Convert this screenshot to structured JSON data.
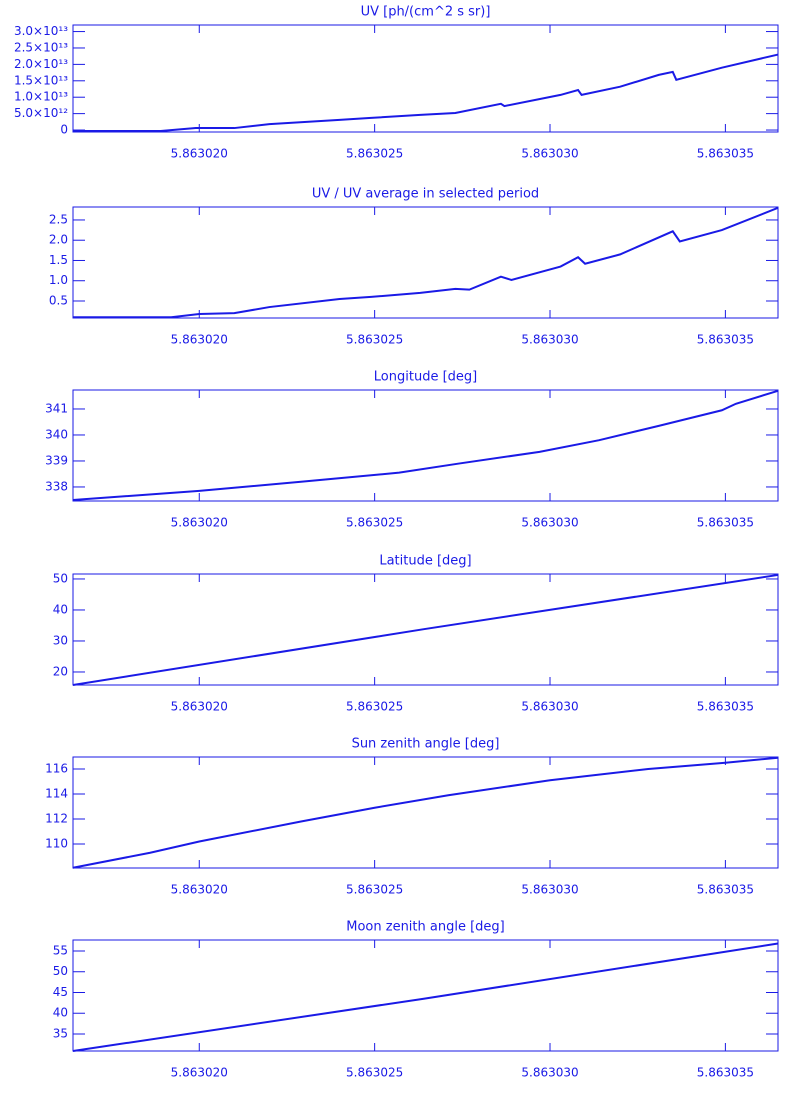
{
  "chart_data": [
    {
      "type": "line",
      "title": "UV [ph/(cm^2 s sr)]",
      "color": "#1a1ae6",
      "x": [
        5.8630164,
        5.8630189,
        5.8630199,
        5.863021,
        5.863022,
        5.863024,
        5.8630249,
        5.8630263,
        5.8630273,
        5.8630286,
        5.8630287,
        5.8630303,
        5.8630308,
        5.8630309,
        5.863032,
        5.8630331,
        5.8630335,
        5.8630336,
        5.8630349,
        5.8630365
      ],
      "values": [
        -300000000000.0,
        -300000000000.0,
        600000000000.0,
        600000000000.0,
        1800000000000.0,
        3100000000000.0,
        3700000000000.0,
        4600000000000.0,
        5200000000000.0,
        8000000000000.0,
        7300000000000.0,
        10700000000000.0,
        12200000000000.0,
        10700000000000.0,
        13200000000000.0,
        16800000000000.0,
        17700000000000.0,
        15300000000000.0,
        19000000000000.0,
        23000000000000.0
      ],
      "xlim": [
        5.8630164,
        5.8630365
      ],
      "xticks": [
        {
          "value": 5.86302,
          "label": "5.863020"
        },
        5.863025,
        {
          "value": 5.86303,
          "label": "5.863030"
        },
        5.863035
      ],
      "ylim": [
        -600000000000.0,
        32000000000000.0
      ],
      "yticks": [
        0,
        {
          "value": 5000000000000.0,
          "label": "5.0×10¹²"
        },
        {
          "value": 10000000000000.0,
          "label": "1.0×10¹³"
        },
        {
          "value": 15000000000000.0,
          "label": "1.5×10¹³"
        },
        {
          "value": 20000000000000.0,
          "label": "2.0×10¹³"
        },
        {
          "value": 25000000000000.0,
          "label": "2.5×10¹³"
        },
        {
          "value": 30000000000000.0,
          "label": "3.0×10¹³"
        }
      ]
    },
    {
      "type": "line",
      "title": "UV / UV average in selected period",
      "color": "#1a1ae6",
      "x": [
        5.8630164,
        5.8630192,
        5.86302,
        5.863021,
        5.863022,
        5.863024,
        5.8630249,
        5.8630263,
        5.8630273,
        5.8630277,
        5.8630286,
        5.8630289,
        5.8630303,
        5.8630308,
        5.863031,
        5.863032,
        5.8630335,
        5.8630337,
        5.8630349,
        5.8630365
      ],
      "values": [
        0.1,
        0.1,
        0.18,
        0.2,
        0.35,
        0.55,
        0.6,
        0.7,
        0.8,
        0.78,
        1.1,
        1.02,
        1.35,
        1.58,
        1.42,
        1.65,
        2.22,
        1.97,
        2.25,
        2.8
      ],
      "xlim": [
        5.8630164,
        5.8630365
      ],
      "xticks": [
        {
          "value": 5.86302,
          "label": "5.863020"
        },
        5.863025,
        {
          "value": 5.86303,
          "label": "5.863030"
        },
        5.863035
      ],
      "ylim": [
        0.08,
        2.82
      ],
      "yticks": [
        0.5,
        {
          "value": 1,
          "label": "1.0"
        },
        1.5,
        {
          "value": 2,
          "label": "2.0"
        },
        2.5
      ]
    },
    {
      "type": "line",
      "title": "Longitude [deg]",
      "color": "#1a1ae6",
      "x": [
        5.8630164,
        5.86302,
        5.8630229,
        5.8630257,
        5.8630274,
        5.8630297,
        5.8630314,
        5.8630331,
        5.8630349,
        5.8630353,
        5.8630365
      ],
      "values": [
        337.5,
        337.85,
        338.2,
        338.55,
        338.9,
        339.35,
        339.8,
        340.35,
        340.95,
        341.2,
        341.7
      ],
      "xlim": [
        5.8630164,
        5.8630365
      ],
      "xticks": [
        {
          "value": 5.86302,
          "label": "5.863020"
        },
        5.863025,
        {
          "value": 5.86303,
          "label": "5.863030"
        },
        5.863035
      ],
      "ylim": [
        337.46,
        341.73
      ],
      "yticks": [
        338,
        339,
        340,
        341
      ]
    },
    {
      "type": "line",
      "title": "Latitude [deg]",
      "color": "#1a1ae6",
      "x": [
        5.8630164,
        5.8630264,
        5.8630365
      ],
      "values": [
        15.8,
        33.8,
        51.3
      ],
      "xlim": [
        5.8630164,
        5.8630365
      ],
      "xticks": [
        {
          "value": 5.86302,
          "label": "5.863020"
        },
        5.863025,
        {
          "value": 5.86303,
          "label": "5.863030"
        },
        5.863035
      ],
      "ylim": [
        15.8,
        51.6
      ],
      "yticks": [
        20,
        30,
        40,
        50
      ]
    },
    {
      "type": "line",
      "title": "Sun zenith angle [deg]",
      "color": "#1a1ae6",
      "x": [
        5.8630164,
        5.8630186,
        5.86302,
        5.8630229,
        5.863025,
        5.8630271,
        5.86303,
        5.8630328,
        5.863035,
        5.8630365
      ],
      "values": [
        108.1,
        109.3,
        110.2,
        111.8,
        112.9,
        113.9,
        115.1,
        116.0,
        116.5,
        116.9
      ],
      "xlim": [
        5.8630164,
        5.8630365
      ],
      "xticks": [
        {
          "value": 5.86302,
          "label": "5.863020"
        },
        5.863025,
        {
          "value": 5.86303,
          "label": "5.863030"
        },
        5.863035
      ],
      "ylim": [
        108.08,
        116.96
      ],
      "yticks": [
        110,
        112,
        114,
        116
      ]
    },
    {
      "type": "line",
      "title": "Moon zenith angle [deg]",
      "color": "#1a1ae6",
      "x": [
        5.8630164,
        5.8630264,
        5.8630365
      ],
      "values": [
        30.9,
        43.5,
        56.8
      ],
      "xlim": [
        5.8630164,
        5.8630365
      ],
      "xticks": [
        {
          "value": 5.86302,
          "label": "5.863020"
        },
        5.863025,
        {
          "value": 5.86303,
          "label": "5.863030"
        },
        5.863035
      ],
      "ylim": [
        30.9,
        57.65
      ],
      "yticks": [
        35,
        40,
        45,
        50,
        55
      ]
    }
  ]
}
